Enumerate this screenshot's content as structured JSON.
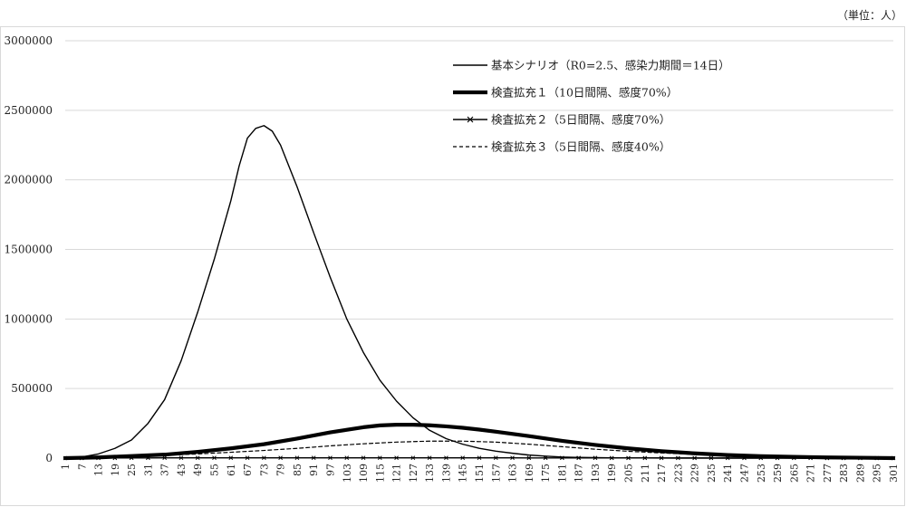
{
  "unit_note": "（単位：人）",
  "chart_data": {
    "type": "line",
    "title": "",
    "xlabel": "",
    "ylabel": "",
    "ylim": [
      0,
      3000000
    ],
    "xlim": [
      1,
      301
    ],
    "yticks": [
      0,
      500000,
      1000000,
      1500000,
      2000000,
      2500000,
      3000000
    ],
    "ytick_labels": [
      "0",
      "500000",
      "1000000",
      "1500000",
      "2000000",
      "2500000",
      "3000000"
    ],
    "xtick_step": 6,
    "grid": "horizontal",
    "legend_position": "top-right",
    "series": [
      {
        "name": "基本シナリオ（R0=2.5、感染力期間＝14日）",
        "style": "thin",
        "color": "#000000",
        "x": [
          1,
          7,
          13,
          19,
          25,
          31,
          37,
          43,
          49,
          55,
          61,
          64,
          67,
          70,
          73,
          76,
          79,
          85,
          91,
          97,
          103,
          109,
          115,
          121,
          127,
          133,
          139,
          145,
          151,
          157,
          163,
          169,
          175,
          181,
          187,
          199,
          211,
          223,
          241,
          301
        ],
        "values": [
          0,
          8000,
          30000,
          70000,
          130000,
          250000,
          420000,
          700000,
          1050000,
          1430000,
          1850000,
          2100000,
          2300000,
          2370000,
          2390000,
          2350000,
          2250000,
          1950000,
          1620000,
          1300000,
          1000000,
          760000,
          560000,
          410000,
          290000,
          200000,
          140000,
          100000,
          70000,
          50000,
          35000,
          22000,
          14000,
          8000,
          5000,
          2000,
          1000,
          0,
          0,
          0
        ]
      },
      {
        "name": "検査拡充１（10日間隔、感度70%）",
        "style": "thick",
        "color": "#000000",
        "x": [
          1,
          13,
          25,
          37,
          49,
          61,
          73,
          85,
          97,
          109,
          115,
          121,
          127,
          133,
          139,
          145,
          151,
          157,
          169,
          181,
          193,
          205,
          217,
          229,
          241,
          253,
          265,
          277,
          289,
          301
        ],
        "values": [
          0,
          5000,
          15000,
          25000,
          45000,
          70000,
          100000,
          140000,
          185000,
          222000,
          235000,
          240000,
          240000,
          236000,
          228000,
          218000,
          205000,
          190000,
          158000,
          124000,
          95000,
          70000,
          50000,
          34000,
          22000,
          14000,
          9000,
          5000,
          3000,
          0
        ]
      },
      {
        "name": "検査拡充２（5日間隔、感度70%）",
        "style": "marker-x",
        "color": "#000000",
        "x": [
          1,
          7,
          13,
          19,
          25,
          31,
          37,
          43,
          49,
          55,
          61,
          67,
          73,
          79,
          85,
          91,
          97,
          103,
          109,
          115,
          121,
          127,
          133,
          139,
          145,
          151,
          157,
          163,
          169,
          175,
          181,
          187,
          193,
          199,
          205,
          211,
          217,
          223,
          229,
          235,
          241,
          247,
          253,
          259,
          265,
          271,
          277,
          283,
          289,
          295,
          301
        ],
        "values": [
          0,
          0,
          1000,
          1000,
          1500,
          1500,
          2000,
          2000,
          2000,
          2000,
          2000,
          2000,
          2000,
          2000,
          2000,
          2000,
          2000,
          2000,
          2000,
          2000,
          2000,
          2000,
          2000,
          2000,
          2000,
          2000,
          2000,
          2000,
          1500,
          1500,
          1500,
          1500,
          1500,
          1000,
          1000,
          1000,
          1000,
          1000,
          1000,
          1000,
          500,
          500,
          500,
          500,
          500,
          500,
          0,
          0,
          0,
          0,
          0
        ]
      },
      {
        "name": "検査拡充３（5日間隔、感度40%）",
        "style": "dashed",
        "color": "#000000",
        "x": [
          1,
          13,
          25,
          37,
          49,
          61,
          73,
          85,
          97,
          109,
          121,
          133,
          145,
          157,
          169,
          181,
          193,
          205,
          217,
          229,
          241,
          253,
          265,
          277,
          289,
          301
        ],
        "values": [
          0,
          3000,
          10000,
          20000,
          30000,
          42000,
          55000,
          70000,
          88000,
          103000,
          115000,
          122000,
          122000,
          115000,
          100000,
          82000,
          64000,
          49000,
          37000,
          27000,
          19000,
          13000,
          8000,
          5000,
          3000,
          0
        ]
      }
    ]
  }
}
